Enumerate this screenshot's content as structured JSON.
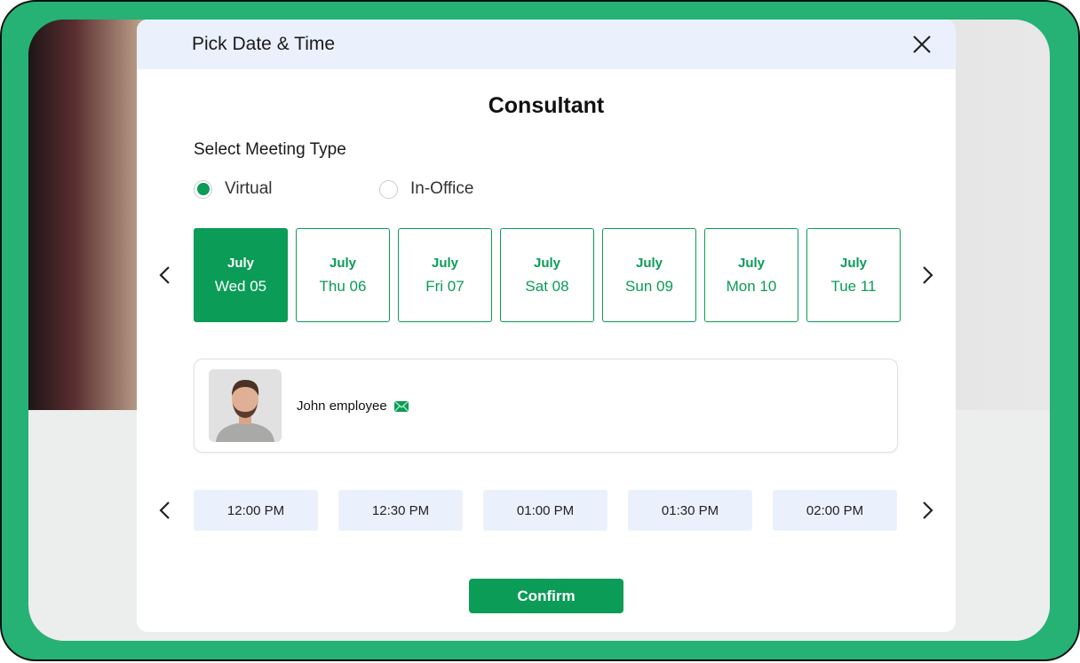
{
  "modal": {
    "header_title": "Pick Date & Time",
    "title": "Consultant",
    "meeting_type_label": "Select Meeting Type",
    "meeting_types": [
      {
        "label": "Virtual",
        "selected": true
      },
      {
        "label": "In-Office",
        "selected": false
      }
    ],
    "dates": [
      {
        "month": "July",
        "day": "Wed 05",
        "selected": true
      },
      {
        "month": "July",
        "day": "Thu 06"
      },
      {
        "month": "July",
        "day": "Fri 07"
      },
      {
        "month": "July",
        "day": "Sat 08"
      },
      {
        "month": "July",
        "day": "Sun 09"
      },
      {
        "month": "July",
        "day": "Mon 10"
      },
      {
        "month": "July",
        "day": "Tue 11"
      }
    ],
    "employee": {
      "name": "John employee",
      "icon": "mail-icon"
    },
    "times": [
      "12:00 PM",
      "12:30 PM",
      "01:00 PM",
      "01:30 PM",
      "02:00 PM"
    ],
    "confirm_label": "Confirm"
  },
  "colors": {
    "accent": "#0b9c57",
    "frame": "#25b274",
    "header_bg": "#ebf1fc"
  }
}
